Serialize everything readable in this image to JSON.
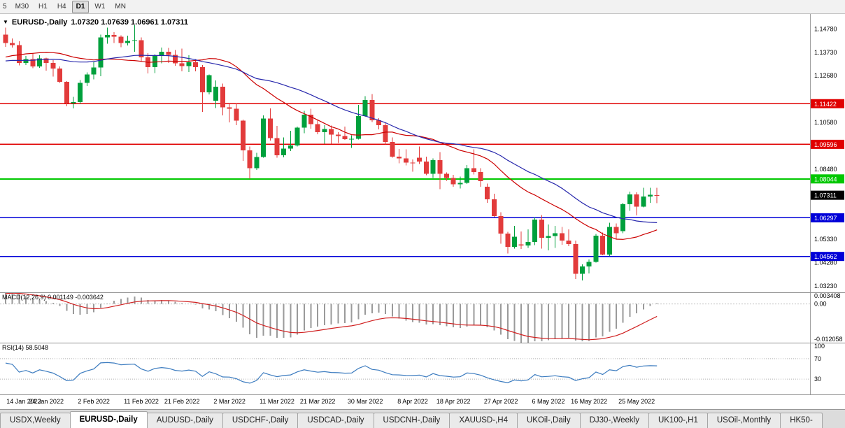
{
  "toolbar": {
    "buttons": [
      "5",
      "M30",
      "H1",
      "H4",
      "D1",
      "W1",
      "MN"
    ],
    "active": "D1"
  },
  "chart": {
    "type": "candlestick",
    "title": {
      "symbol": "EURUSD-,Daily",
      "ohlc": "1.07320 1.07639 1.06961 1.07311"
    },
    "scale": {
      "price_min": 1.0295,
      "price_max": 1.1545
    },
    "colors": {
      "up": "#00a03c",
      "down": "#e23b3b"
    },
    "y_ticks": [
      {
        "v": 1.1478,
        "label": "1.14780"
      },
      {
        "v": 1.1373,
        "label": "1.13730"
      },
      {
        "v": 1.1268,
        "label": "1.12680"
      },
      {
        "v": 1.1058,
        "label": "1.10580"
      },
      {
        "v": 1.0848,
        "label": "1.08480"
      },
      {
        "v": 1.0533,
        "label": "1.05330"
      },
      {
        "v": 1.0428,
        "label": "1.04280"
      },
      {
        "v": 1.0323,
        "label": "1.03230"
      }
    ],
    "levels": [
      {
        "v": 1.11422,
        "label": "1.11422",
        "color": "#e00000",
        "width": 1.3
      },
      {
        "v": 1.09596,
        "label": "1.09596",
        "color": "#e00000",
        "width": 1.3
      },
      {
        "v": 1.08044,
        "label": "1.08044",
        "color": "#00c800",
        "width": 2
      },
      {
        "v": 1.06297,
        "label": "1.06297",
        "color": "#0000d8",
        "width": 1.6
      },
      {
        "v": 1.04562,
        "label": "1.04562",
        "color": "#0000d8",
        "width": 1.6
      }
    ],
    "current_price": {
      "v": 1.07311,
      "label": "1.07311",
      "bg": "#000000"
    },
    "ma": [
      {
        "period": 20,
        "color": "#cc0000",
        "name": "ma-fast"
      },
      {
        "period": 30,
        "color": "#2727ac",
        "name": "ma-slow"
      }
    ],
    "history_closes": [
      1.129,
      1.1275,
      1.1268,
      1.128,
      1.1295,
      1.1302,
      1.1288,
      1.1275,
      1.126,
      1.125,
      1.1265,
      1.1285,
      1.13,
      1.132,
      1.131,
      1.1305,
      1.1322,
      1.134,
      1.1355,
      1.137,
      1.139,
      1.142,
      1.1445,
      1.147,
      1.1478,
      1.1455
    ],
    "candles": [
      [
        1.1453,
        1.1483,
        1.1398,
        1.1415
      ],
      [
        1.1415,
        1.1435,
        1.1395,
        1.1405
      ],
      [
        1.1405,
        1.1422,
        1.1314,
        1.1325
      ],
      [
        1.1325,
        1.1357,
        1.1316,
        1.1343
      ],
      [
        1.1343,
        1.1369,
        1.1301,
        1.131
      ],
      [
        1.131,
        1.136,
        1.1303,
        1.1345
      ],
      [
        1.1345,
        1.1349,
        1.129,
        1.1325
      ],
      [
        1.1325,
        1.1338,
        1.1264,
        1.13
      ],
      [
        1.13,
        1.131,
        1.1235,
        1.124
      ],
      [
        1.124,
        1.1244,
        1.1131,
        1.1144
      ],
      [
        1.1144,
        1.1173,
        1.1121,
        1.115
      ],
      [
        1.115,
        1.1248,
        1.1141,
        1.1235
      ],
      [
        1.1235,
        1.1283,
        1.1221,
        1.1273
      ],
      [
        1.1273,
        1.133,
        1.1251,
        1.1305
      ],
      [
        1.1305,
        1.1452,
        1.1266,
        1.144
      ],
      [
        1.144,
        1.1483,
        1.1411,
        1.145
      ],
      [
        1.145,
        1.1463,
        1.1415,
        1.1443
      ],
      [
        1.1443,
        1.1449,
        1.1396,
        1.1415
      ],
      [
        1.1415,
        1.1448,
        1.1403,
        1.1424
      ],
      [
        1.1424,
        1.1495,
        1.1375,
        1.1428
      ],
      [
        1.1428,
        1.144,
        1.133,
        1.135
      ],
      [
        1.135,
        1.1369,
        1.1278,
        1.1306
      ],
      [
        1.1306,
        1.1365,
        1.128,
        1.1358
      ],
      [
        1.1358,
        1.1395,
        1.1324,
        1.1375
      ],
      [
        1.1375,
        1.1393,
        1.1325,
        1.1362
      ],
      [
        1.1362,
        1.1384,
        1.1312,
        1.1324
      ],
      [
        1.1324,
        1.139,
        1.1288,
        1.1311
      ],
      [
        1.1311,
        1.1359,
        1.1285,
        1.1328
      ],
      [
        1.1328,
        1.1342,
        1.1287,
        1.1307
      ],
      [
        1.1307,
        1.1315,
        1.1106,
        1.1193
      ],
      [
        1.1193,
        1.1274,
        1.1184,
        1.127
      ],
      [
        1.1155,
        1.1247,
        1.1122,
        1.1218
      ],
      [
        1.1218,
        1.1232,
        1.109,
        1.1125
      ],
      [
        1.1125,
        1.114,
        1.1058,
        1.112
      ],
      [
        1.112,
        1.1143,
        1.1045,
        1.1066
      ],
      [
        1.1066,
        1.107,
        1.0886,
        1.0932
      ],
      [
        1.0932,
        1.095,
        1.0806,
        1.0853
      ],
      [
        1.0853,
        1.0922,
        1.0845,
        1.0902
      ],
      [
        1.0902,
        1.109,
        1.09,
        1.1076
      ],
      [
        1.1076,
        1.1121,
        1.0976,
        1.0988
      ],
      [
        1.0988,
        1.1043,
        1.09,
        1.0911
      ],
      [
        1.0911,
        1.099,
        1.0901,
        1.094
      ],
      [
        1.094,
        1.102,
        1.093,
        1.0955
      ],
      [
        1.0955,
        1.104,
        1.095,
        1.1035
      ],
      [
        1.1035,
        1.111,
        1.101,
        1.1093
      ],
      [
        1.1093,
        1.112,
        1.103,
        1.1051
      ],
      [
        1.1051,
        1.1069,
        1.1005,
        1.1015
      ],
      [
        1.1015,
        1.1046,
        1.0962,
        1.1028
      ],
      [
        1.1028,
        1.1044,
        1.0963,
        1.1003
      ],
      [
        1.1003,
        1.1014,
        1.0965,
        1.0997
      ],
      [
        1.0997,
        1.1039,
        1.098,
        1.0983
      ],
      [
        1.0983,
        1.1,
        1.0944,
        1.0985
      ],
      [
        1.0985,
        1.1137,
        1.0982,
        1.1086
      ],
      [
        1.1086,
        1.1176,
        1.1084,
        1.1158
      ],
      [
        1.1158,
        1.1185,
        1.106,
        1.1067
      ],
      [
        1.1067,
        1.1077,
        1.1027,
        1.1046
      ],
      [
        1.1046,
        1.1056,
        1.096,
        1.0971
      ],
      [
        1.0971,
        1.0991,
        1.09,
        1.0905
      ],
      [
        1.0905,
        1.0939,
        1.0875,
        1.0896
      ],
      [
        1.0896,
        1.0938,
        1.0865,
        1.0878
      ],
      [
        1.0878,
        1.0892,
        1.0836,
        1.0876
      ],
      [
        1.09,
        1.095,
        1.0872,
        1.0883
      ],
      [
        1.0883,
        1.0905,
        1.0821,
        1.0828
      ],
      [
        1.0828,
        1.0896,
        1.0809,
        1.0889
      ],
      [
        1.0889,
        1.0924,
        1.0758,
        1.0827
      ],
      [
        1.0827,
        1.0833,
        1.0796,
        1.0808
      ],
      [
        1.0808,
        1.0822,
        1.077,
        1.0781
      ],
      [
        1.0781,
        1.0815,
        1.0761,
        1.0786
      ],
      [
        1.0786,
        1.0867,
        1.0782,
        1.0852
      ],
      [
        1.0852,
        1.0937,
        1.0824,
        1.0835
      ],
      [
        1.0835,
        1.0852,
        1.077,
        1.0795
      ],
      [
        1.077,
        1.0784,
        1.0697,
        1.0712
      ],
      [
        1.0712,
        1.0738,
        1.0633,
        1.0637
      ],
      [
        1.0637,
        1.0655,
        1.0514,
        1.0559
      ],
      [
        1.0559,
        1.0567,
        1.047,
        1.0499
      ],
      [
        1.0499,
        1.0593,
        1.0491,
        1.0545
      ],
      [
        1.051,
        1.0568,
        1.049,
        1.0505
      ],
      [
        1.0505,
        1.0578,
        1.0495,
        1.0521
      ],
      [
        1.0521,
        1.0631,
        1.0507,
        1.0622
      ],
      [
        1.0622,
        1.0642,
        1.0492,
        1.054
      ],
      [
        1.054,
        1.0599,
        1.0483,
        1.0548
      ],
      [
        1.0548,
        1.0594,
        1.0495,
        1.056
      ],
      [
        1.056,
        1.0588,
        1.0508,
        1.0528
      ],
      [
        1.0528,
        1.0578,
        1.0503,
        1.0512
      ],
      [
        1.0512,
        1.0527,
        1.0354,
        1.0379
      ],
      [
        1.0379,
        1.042,
        1.0348,
        1.0411
      ],
      [
        1.0411,
        1.0443,
        1.038,
        1.0432
      ],
      [
        1.0432,
        1.0557,
        1.0428,
        1.0549
      ],
      [
        1.0549,
        1.0564,
        1.0461,
        1.0465
      ],
      [
        1.0465,
        1.0607,
        1.0459,
        1.0588
      ],
      [
        1.0588,
        1.0604,
        1.0532,
        1.0561
      ],
      [
        1.057,
        1.0697,
        1.056,
        1.0691
      ],
      [
        1.0691,
        1.0748,
        1.0661,
        1.0735
      ],
      [
        1.0735,
        1.0744,
        1.0641,
        1.068
      ],
      [
        1.068,
        1.0765,
        1.0676,
        1.0725
      ],
      [
        1.0725,
        1.0764,
        1.0697,
        1.0733
      ],
      [
        1.0732,
        1.07639,
        1.06961,
        1.07311
      ]
    ],
    "x_labels": [
      {
        "i": 0,
        "label": "14 Jan 2022"
      },
      {
        "i": 6,
        "label": "24 Jan 2022"
      },
      {
        "i": 13,
        "label": "2 Feb 2022"
      },
      {
        "i": 20,
        "label": "11 Feb 2022"
      },
      {
        "i": 26,
        "label": "21 Feb 2022"
      },
      {
        "i": 33,
        "label": "2 Mar 2022"
      },
      {
        "i": 40,
        "label": "11 Mar 2022"
      },
      {
        "i": 46,
        "label": "21 Mar 2022"
      },
      {
        "i": 53,
        "label": "30 Mar 2022"
      },
      {
        "i": 60,
        "label": "8 Apr 2022"
      },
      {
        "i": 66,
        "label": "18 Apr 2022"
      },
      {
        "i": 73,
        "label": "27 Apr 2022"
      },
      {
        "i": 80,
        "label": "6 May 2022"
      },
      {
        "i": 86,
        "label": "16 May 2022"
      },
      {
        "i": 93,
        "label": "25 May 2022"
      }
    ]
  },
  "macd": {
    "label": "MACD(12,26,9) 0.001149 -0.003642",
    "fast": 12,
    "slow": 26,
    "signal": 9,
    "range": {
      "min": -0.012058,
      "max": 0.003408
    },
    "axis": [
      {
        "v": 0.003408,
        "label": "0.003408"
      },
      {
        "v": 0,
        "label": "0.00"
      },
      {
        "v": -0.012058,
        "label": "-0.012058"
      }
    ],
    "colors": {
      "histogram": "#9a9a9a",
      "signal": "#d02020"
    }
  },
  "rsi": {
    "label": "RSI(14) 58.5048",
    "period": 14,
    "color": "#3b7bbf",
    "axis": [
      {
        "v": 100,
        "label": "100"
      },
      {
        "v": 70,
        "label": "70"
      },
      {
        "v": 30,
        "label": "30"
      }
    ],
    "levels": [
      70,
      30
    ]
  },
  "tabs": {
    "items": [
      "USDX,Weekly",
      "EURUSD-,Daily",
      "AUDUSD-,Daily",
      "USDCHF-,Daily",
      "USDCAD-,Daily",
      "USDCNH-,Daily",
      "XAUUSD-,H4",
      "UKOil-,Daily",
      "DJ30-,Weekly",
      "UK100-,H1",
      "USOil-,Monthly",
      "HK50-"
    ],
    "active": "EURUSD-,Daily"
  }
}
